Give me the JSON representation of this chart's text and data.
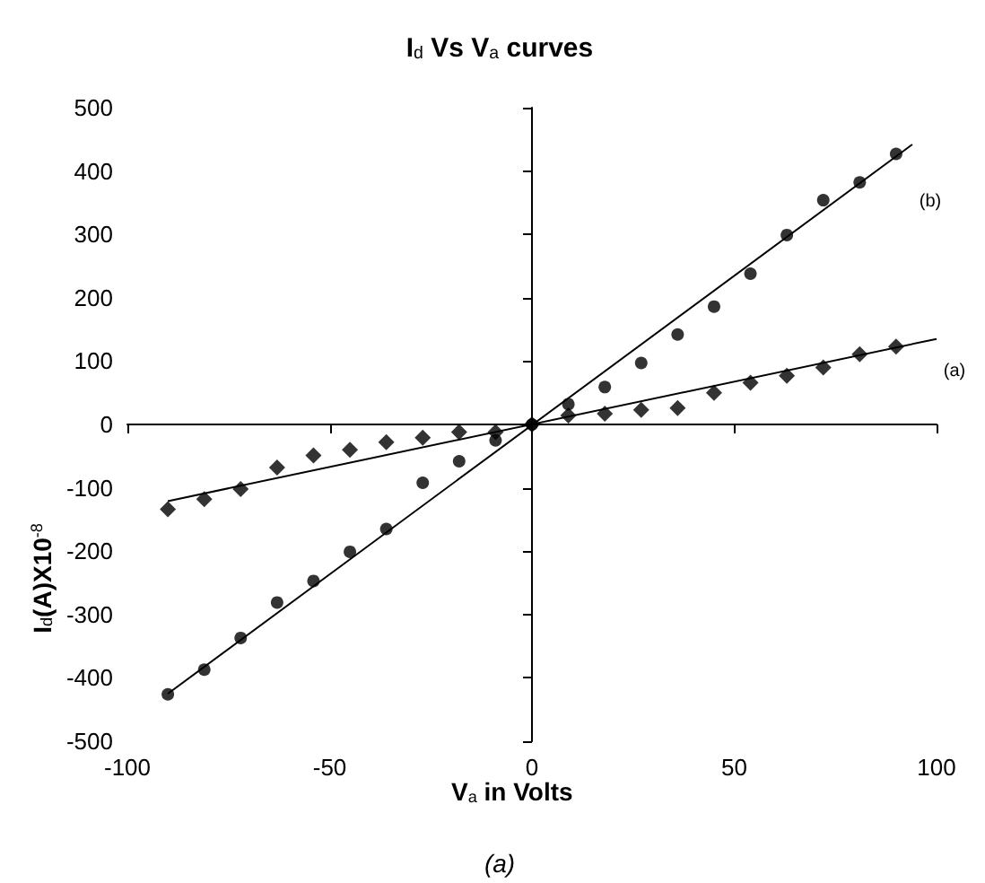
{
  "chart_data": {
    "type": "scatter",
    "title": "I$_{d}$ Vs V$_{a}$ curves",
    "xlabel": "V$_{a}$ in Volts",
    "ylabel": "I$_{d}$(A)X10$^{-8}$",
    "xlim": [
      -100,
      100
    ],
    "xticks": [
      -100,
      -50,
      0,
      50,
      100
    ],
    "ylim": [
      -500,
      500
    ],
    "yticks": [
      -500,
      -400,
      -300,
      -200,
      -100,
      0,
      100,
      200,
      300,
      400,
      500
    ],
    "series": [
      {
        "marker": "diamond",
        "color": "#000000",
        "x": [
          -90,
          -81,
          -72,
          -63,
          -54,
          -45,
          -36,
          -27,
          -18,
          -9,
          0,
          9,
          18,
          27,
          36,
          45,
          54,
          63,
          72,
          81,
          90
        ],
        "values": [
          -134,
          -118,
          -102,
          -68,
          -49,
          -40,
          -28,
          -21,
          -12,
          -12,
          0,
          14,
          17,
          23,
          26,
          50,
          66,
          77,
          90,
          111,
          123
        ]
      },
      {
        "marker": "circle",
        "color": "#000000",
        "x": [
          -90,
          -81,
          -72,
          -63,
          -54,
          -45,
          -36,
          -27,
          -18,
          -9,
          0,
          9,
          18,
          27,
          36,
          45,
          54,
          63,
          72,
          81,
          90
        ],
        "values": [
          -426,
          -387,
          -337,
          -281,
          -247,
          -201,
          -165,
          -92,
          -58,
          -25,
          0,
          32,
          59,
          97,
          142,
          186,
          238,
          299,
          354,
          382,
          427
        ]
      },
      {
        "type": "line",
        "marker": "none",
        "color": "#000000",
        "x": [
          -90,
          100
        ],
        "values": [
          -121,
          135
        ]
      },
      {
        "type": "line",
        "marker": "none",
        "color": "#000000",
        "x": [
          -90,
          94
        ],
        "values": [
          -425,
          442
        ]
      }
    ],
    "annotations": [
      "(a)",
      "(b)",
      "(a)"
    ]
  }
}
